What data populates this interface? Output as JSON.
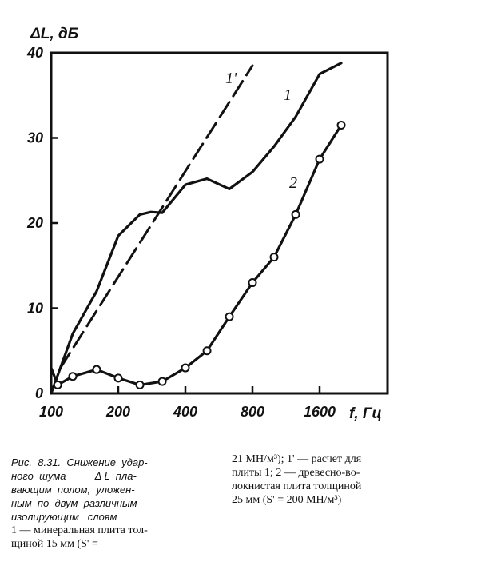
{
  "chart_data": {
    "type": "line",
    "ylabel": "ΔL, дБ",
    "xlabel": "f, Гц",
    "x_scale": "log2",
    "x_ticks": [
      "100",
      "200",
      "400",
      "800",
      "1600"
    ],
    "y_ticks": [
      "0",
      "10",
      "20",
      "30",
      "40"
    ],
    "ylim": [
      0,
      40
    ],
    "xlim": [
      100,
      2400
    ],
    "grid": false,
    "series": [
      {
        "name": "1'",
        "style": "dashed",
        "markers": false,
        "x": [
          110,
          800
        ],
        "y": [
          3,
          38.5
        ]
      },
      {
        "name": "1",
        "style": "solid",
        "markers": false,
        "x": [
          100,
          125,
          160,
          200,
          250,
          280,
          315,
          400,
          500,
          630,
          800,
          1000,
          1250,
          1600,
          2000
        ],
        "y": [
          0,
          7,
          12,
          18.5,
          21,
          21.3,
          21.2,
          24.5,
          25.2,
          24,
          26,
          29,
          32.5,
          37.5,
          38.8
        ]
      },
      {
        "name": "2",
        "style": "solid",
        "markers": true,
        "x": [
          100,
          107,
          125,
          160,
          200,
          250,
          315,
          400,
          500,
          630,
          800,
          1000,
          1250,
          1600,
          2000
        ],
        "y": [
          3,
          1,
          2,
          2.8,
          1.8,
          1,
          1.4,
          3,
          5,
          9,
          13,
          16,
          21,
          27.5,
          31.5
        ]
      }
    ]
  },
  "caption": {
    "left_lines": [
      "Рис.  8.31.  Снижение  удар-",
      "ного  шума          Δ L  пла-",
      "вающим  полом,  уложен-",
      "ным  по  двум  различным",
      "изолирующим   слоям"
    ],
    "left_plain_lines": [
      "1 — минеральная плита тол-",
      "щиной 15 мм (S' ="
    ],
    "right_lines": [
      "",
      "21 МН/м³); 1' — расчет для",
      "плиты 1; 2 — древесно-во-",
      "локнистая плита толщиной",
      "25 мм (S' = 200 МН/м³)"
    ]
  }
}
